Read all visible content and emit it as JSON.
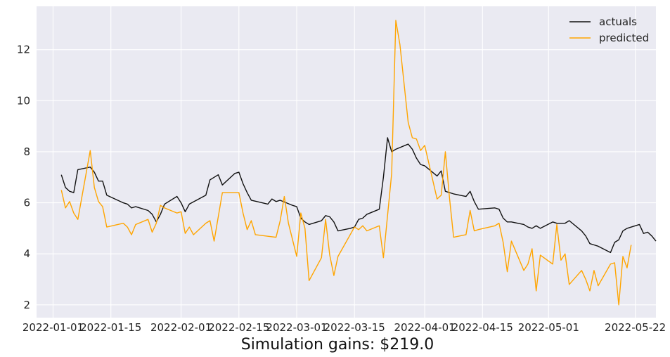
{
  "chart_data": {
    "type": "line",
    "title": "Simulation gains: $219.0",
    "xlabel": "",
    "ylabel": "",
    "xlim": [
      "2021-12-28",
      "2022-05-27"
    ],
    "ylim": [
      1.5,
      13.7
    ],
    "grid": true,
    "legend_position": "top-right",
    "x_ticks": [
      "2022-01-01",
      "2022-01-15",
      "2022-02-01",
      "2022-02-15",
      "2022-03-01",
      "2022-03-15",
      "2022-04-01",
      "2022-04-15",
      "2022-05-01",
      "2022-05-22"
    ],
    "x_tick_labels": [
      "2022-01-01",
      "2022-01-15",
      "2022-02-01",
      "2022-02-15",
      "2022-03-01",
      "2022-03-15",
      "2022-04-01",
      "2022-04-15",
      "2022-05-01",
      "2022-05-22"
    ],
    "y_ticks": [
      2,
      4,
      6,
      8,
      10,
      12
    ],
    "y_tick_labels": [
      "2",
      "4",
      "6",
      "8",
      "10",
      "12"
    ],
    "series": [
      {
        "name": "actuals",
        "color": "#111111",
        "points": [
          [
            "2022-01-03",
            7.1
          ],
          [
            "2022-01-04",
            6.6
          ],
          [
            "2022-01-05",
            6.45
          ],
          [
            "2022-01-06",
            6.4
          ],
          [
            "2022-01-07",
            7.3
          ],
          [
            "2022-01-10",
            7.4
          ],
          [
            "2022-01-11",
            7.2
          ],
          [
            "2022-01-12",
            6.85
          ],
          [
            "2022-01-13",
            6.85
          ],
          [
            "2022-01-14",
            6.3
          ],
          [
            "2022-01-18",
            6.0
          ],
          [
            "2022-01-19",
            5.95
          ],
          [
            "2022-01-20",
            5.8
          ],
          [
            "2022-01-21",
            5.85
          ],
          [
            "2022-01-24",
            5.7
          ],
          [
            "2022-01-25",
            5.55
          ],
          [
            "2022-01-26",
            5.25
          ],
          [
            "2022-01-27",
            5.55
          ],
          [
            "2022-01-28",
            5.95
          ],
          [
            "2022-01-31",
            6.25
          ],
          [
            "2022-02-01",
            6.0
          ],
          [
            "2022-02-02",
            5.65
          ],
          [
            "2022-02-03",
            5.95
          ],
          [
            "2022-02-07",
            6.3
          ],
          [
            "2022-02-08",
            6.9
          ],
          [
            "2022-02-09",
            7.0
          ],
          [
            "2022-02-10",
            7.1
          ],
          [
            "2022-02-11",
            6.7
          ],
          [
            "2022-02-14",
            7.15
          ],
          [
            "2022-02-15",
            7.2
          ],
          [
            "2022-02-16",
            6.75
          ],
          [
            "2022-02-17",
            6.4
          ],
          [
            "2022-02-18",
            6.1
          ],
          [
            "2022-02-22",
            5.95
          ],
          [
            "2022-02-23",
            6.15
          ],
          [
            "2022-02-24",
            6.05
          ],
          [
            "2022-02-25",
            6.1
          ],
          [
            "2022-02-28",
            5.9
          ],
          [
            "2022-03-01",
            5.85
          ],
          [
            "2022-03-02",
            5.4
          ],
          [
            "2022-03-03",
            5.25
          ],
          [
            "2022-03-04",
            5.15
          ],
          [
            "2022-03-07",
            5.3
          ],
          [
            "2022-03-08",
            5.5
          ],
          [
            "2022-03-09",
            5.45
          ],
          [
            "2022-03-10",
            5.25
          ],
          [
            "2022-03-11",
            4.9
          ],
          [
            "2022-03-14",
            5.0
          ],
          [
            "2022-03-15",
            5.05
          ],
          [
            "2022-03-16",
            5.35
          ],
          [
            "2022-03-17",
            5.4
          ],
          [
            "2022-03-18",
            5.55
          ],
          [
            "2022-03-21",
            5.75
          ],
          [
            "2022-03-22",
            7.0
          ],
          [
            "2022-03-23",
            8.55
          ],
          [
            "2022-03-24",
            8.0
          ],
          [
            "2022-03-25",
            8.1
          ],
          [
            "2022-03-28",
            8.3
          ],
          [
            "2022-03-29",
            8.1
          ],
          [
            "2022-03-30",
            7.75
          ],
          [
            "2022-03-31",
            7.5
          ],
          [
            "2022-04-01",
            7.45
          ],
          [
            "2022-04-04",
            7.05
          ],
          [
            "2022-04-05",
            7.25
          ],
          [
            "2022-04-06",
            6.45
          ],
          [
            "2022-04-07",
            6.4
          ],
          [
            "2022-04-08",
            6.35
          ],
          [
            "2022-04-11",
            6.25
          ],
          [
            "2022-04-12",
            6.45
          ],
          [
            "2022-04-13",
            6.05
          ],
          [
            "2022-04-14",
            5.75
          ],
          [
            "2022-04-18",
            5.8
          ],
          [
            "2022-04-19",
            5.75
          ],
          [
            "2022-04-20",
            5.4
          ],
          [
            "2022-04-21",
            5.25
          ],
          [
            "2022-04-22",
            5.25
          ],
          [
            "2022-04-25",
            5.15
          ],
          [
            "2022-04-26",
            5.05
          ],
          [
            "2022-04-27",
            5.0
          ],
          [
            "2022-04-28",
            5.1
          ],
          [
            "2022-04-29",
            5.0
          ],
          [
            "2022-05-02",
            5.25
          ],
          [
            "2022-05-03",
            5.2
          ],
          [
            "2022-05-05",
            5.2
          ],
          [
            "2022-05-06",
            5.3
          ],
          [
            "2022-05-09",
            4.9
          ],
          [
            "2022-05-10",
            4.7
          ],
          [
            "2022-05-11",
            4.4
          ],
          [
            "2022-05-12",
            4.35
          ],
          [
            "2022-05-13",
            4.3
          ],
          [
            "2022-05-16",
            4.05
          ],
          [
            "2022-05-17",
            4.45
          ],
          [
            "2022-05-18",
            4.55
          ],
          [
            "2022-05-19",
            4.9
          ],
          [
            "2022-05-20",
            5.0
          ],
          [
            "2022-05-23",
            5.15
          ],
          [
            "2022-05-24",
            4.8
          ],
          [
            "2022-05-25",
            4.85
          ],
          [
            "2022-05-26",
            4.7
          ],
          [
            "2022-05-27",
            4.5
          ]
        ]
      },
      {
        "name": "predicted",
        "color": "#ffa500",
        "points": [
          [
            "2022-01-03",
            6.5
          ],
          [
            "2022-01-04",
            5.8
          ],
          [
            "2022-01-05",
            6.05
          ],
          [
            "2022-01-06",
            5.6
          ],
          [
            "2022-01-07",
            5.35
          ],
          [
            "2022-01-10",
            8.05
          ],
          [
            "2022-01-11",
            6.6
          ],
          [
            "2022-01-12",
            6.05
          ],
          [
            "2022-01-13",
            5.85
          ],
          [
            "2022-01-14",
            5.05
          ],
          [
            "2022-01-18",
            5.2
          ],
          [
            "2022-01-19",
            5.05
          ],
          [
            "2022-01-20",
            4.75
          ],
          [
            "2022-01-21",
            5.15
          ],
          [
            "2022-01-24",
            5.35
          ],
          [
            "2022-01-25",
            4.85
          ],
          [
            "2022-01-26",
            5.2
          ],
          [
            "2022-01-27",
            5.9
          ],
          [
            "2022-01-28",
            5.8
          ],
          [
            "2022-01-31",
            5.6
          ],
          [
            "2022-02-01",
            5.65
          ],
          [
            "2022-02-02",
            4.8
          ],
          [
            "2022-02-03",
            5.05
          ],
          [
            "2022-02-04",
            4.75
          ],
          [
            "2022-02-07",
            5.2
          ],
          [
            "2022-02-08",
            5.3
          ],
          [
            "2022-02-09",
            4.5
          ],
          [
            "2022-02-11",
            6.4
          ],
          [
            "2022-02-15",
            6.4
          ],
          [
            "2022-02-16",
            5.6
          ],
          [
            "2022-02-17",
            4.95
          ],
          [
            "2022-02-18",
            5.3
          ],
          [
            "2022-02-19",
            4.75
          ],
          [
            "2022-02-24",
            4.65
          ],
          [
            "2022-02-25",
            5.3
          ],
          [
            "2022-02-26",
            6.25
          ],
          [
            "2022-02-27",
            5.2
          ],
          [
            "2022-03-01",
            3.9
          ],
          [
            "2022-03-02",
            5.6
          ],
          [
            "2022-03-03",
            5.0
          ],
          [
            "2022-03-04",
            2.95
          ],
          [
            "2022-03-07",
            3.85
          ],
          [
            "2022-03-08",
            5.35
          ],
          [
            "2022-03-09",
            3.95
          ],
          [
            "2022-03-10",
            3.15
          ],
          [
            "2022-03-11",
            3.9
          ],
          [
            "2022-03-15",
            5.05
          ],
          [
            "2022-03-16",
            4.95
          ],
          [
            "2022-03-17",
            5.1
          ],
          [
            "2022-03-18",
            4.9
          ],
          [
            "2022-03-21",
            5.1
          ],
          [
            "2022-03-22",
            3.85
          ],
          [
            "2022-03-24",
            7.15
          ],
          [
            "2022-03-25",
            13.15
          ],
          [
            "2022-03-26",
            12.2
          ],
          [
            "2022-03-28",
            9.15
          ],
          [
            "2022-03-29",
            8.55
          ],
          [
            "2022-03-30",
            8.5
          ],
          [
            "2022-03-31",
            8.05
          ],
          [
            "2022-04-01",
            8.25
          ],
          [
            "2022-04-04",
            6.15
          ],
          [
            "2022-04-05",
            6.3
          ],
          [
            "2022-04-06",
            8.0
          ],
          [
            "2022-04-07",
            6.2
          ],
          [
            "2022-04-08",
            4.65
          ],
          [
            "2022-04-11",
            4.75
          ],
          [
            "2022-04-12",
            5.7
          ],
          [
            "2022-04-13",
            4.9
          ],
          [
            "2022-04-14",
            4.95
          ],
          [
            "2022-04-18",
            5.1
          ],
          [
            "2022-04-19",
            5.2
          ],
          [
            "2022-04-20",
            4.45
          ],
          [
            "2022-04-21",
            3.3
          ],
          [
            "2022-04-22",
            4.5
          ],
          [
            "2022-04-25",
            3.35
          ],
          [
            "2022-04-26",
            3.6
          ],
          [
            "2022-04-27",
            4.2
          ],
          [
            "2022-04-28",
            2.55
          ],
          [
            "2022-04-29",
            3.95
          ],
          [
            "2022-05-02",
            3.6
          ],
          [
            "2022-05-03",
            5.15
          ],
          [
            "2022-05-04",
            3.75
          ],
          [
            "2022-05-05",
            4.0
          ],
          [
            "2022-05-06",
            2.8
          ],
          [
            "2022-05-09",
            3.35
          ],
          [
            "2022-05-10",
            3.0
          ],
          [
            "2022-05-11",
            2.55
          ],
          [
            "2022-05-12",
            3.35
          ],
          [
            "2022-05-13",
            2.75
          ],
          [
            "2022-05-16",
            3.6
          ],
          [
            "2022-05-17",
            3.65
          ],
          [
            "2022-05-18",
            2.0
          ],
          [
            "2022-05-19",
            3.9
          ],
          [
            "2022-05-20",
            3.45
          ],
          [
            "2022-05-21",
            4.35
          ]
        ]
      }
    ]
  }
}
